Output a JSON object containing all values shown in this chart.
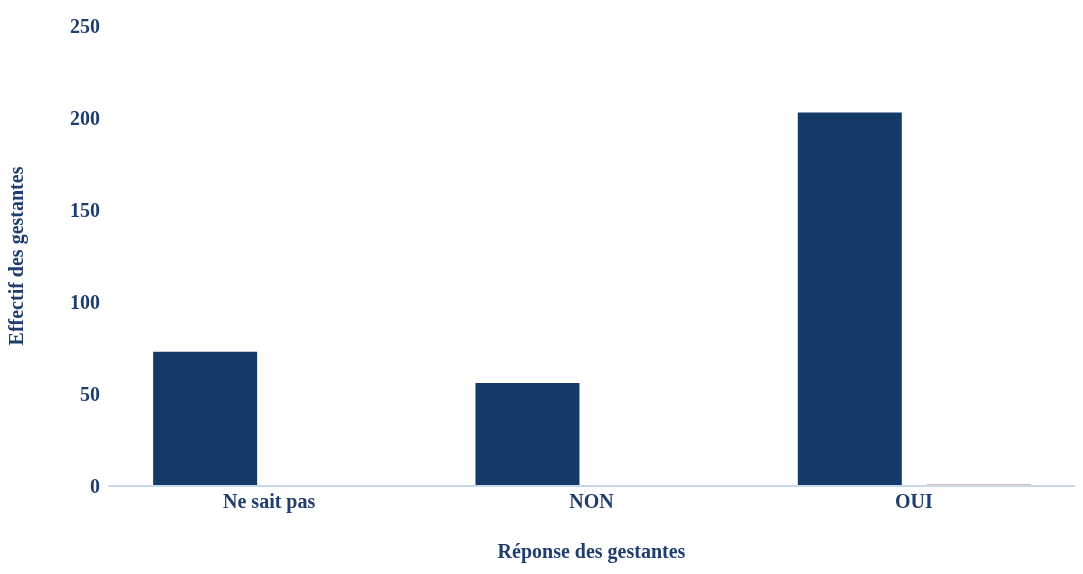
{
  "chart_data": {
    "type": "bar",
    "xlabel": "Réponse des gestantes",
    "ylabel": "Effectif des gestantes",
    "categories": [
      "Ne sait pas",
      "NON",
      "OUI"
    ],
    "series": [
      {
        "color": "#143a6a",
        "values": [
          73,
          56,
          203
        ]
      },
      {
        "color": "#d4a2ab",
        "values": [
          null,
          null,
          1
        ]
      }
    ],
    "ylim": [
      0,
      250
    ],
    "yticks": [
      0,
      50,
      100,
      150,
      200,
      250
    ],
    "grid": false
  }
}
